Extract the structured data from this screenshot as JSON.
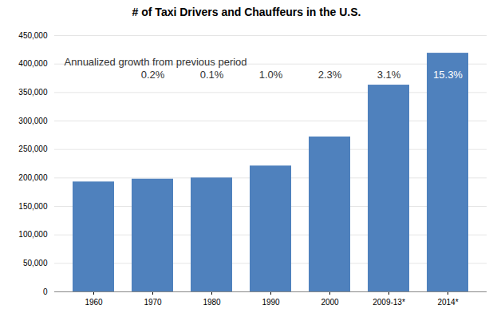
{
  "chart_data": {
    "type": "bar",
    "title": "# of Taxi Drivers and Chauffeurs in the U.S.",
    "categories": [
      "1960",
      "1970",
      "1980",
      "1990",
      "2000",
      "2009-13*",
      "2014*"
    ],
    "values": [
      193000,
      198000,
      200000,
      221000,
      272000,
      363000,
      419000
    ],
    "color": "#4f81bd",
    "annotations": {
      "text": "Annualized growth from previous period",
      "labels": [
        null,
        "0.2%",
        "0.1%",
        "1.0%",
        "2.3%",
        "3.1%",
        "15.3%"
      ]
    },
    "ylim": [
      0,
      450000
    ],
    "yticks": [
      0,
      {
        "value": 50000,
        "label": "50,000"
      },
      {
        "value": 100000,
        "label": "100,000"
      },
      {
        "value": 150000,
        "label": "150,000"
      },
      {
        "value": 200000,
        "label": "200,000"
      },
      {
        "value": 250000,
        "label": "250,000"
      },
      {
        "value": 300000,
        "label": "300,000"
      },
      {
        "value": 350000,
        "label": "350,000"
      },
      {
        "value": 400000,
        "label": "400,000"
      },
      {
        "value": 450000,
        "label": "450,000"
      }
    ],
    "grid": true
  }
}
